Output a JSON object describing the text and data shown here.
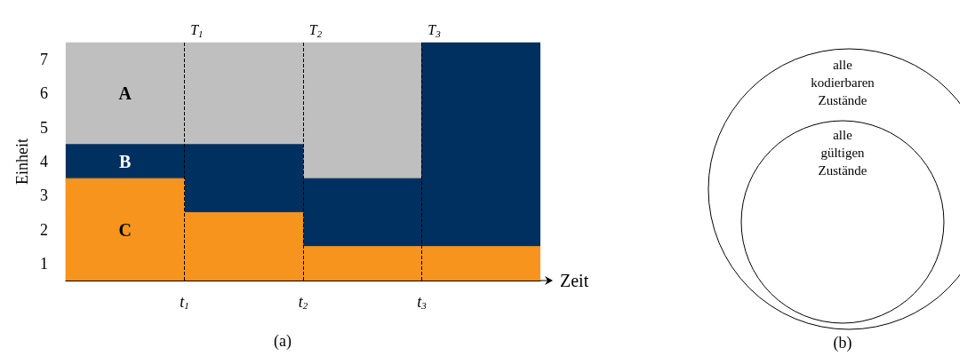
{
  "chart_data": {
    "type": "area",
    "stacked": true,
    "xlim": [
      0,
      4
    ],
    "xticks": [
      {
        "value": 1,
        "label": "t$_{1}$"
      },
      {
        "value": 2,
        "label": "t$_{2}$"
      },
      {
        "value": 3,
        "label": "t$_{3}$"
      }
    ],
    "ylim": [
      0.5,
      7.5
    ],
    "yticks": [
      1,
      2,
      3,
      4,
      5,
      6,
      7
    ],
    "xlabel": "Zeit",
    "ylabel": "Einheit",
    "series": [
      {
        "name": "C",
        "color": "#f7941d",
        "x": [
          0,
          1,
          1,
          2,
          2,
          3,
          3,
          4
        ],
        "values": [
          3.5,
          3.5,
          2.5,
          2.5,
          1.5,
          1.5,
          1.5,
          1.5
        ]
      },
      {
        "name": "B",
        "color": "#003060",
        "x": [
          0,
          1,
          1,
          2,
          2,
          3,
          3,
          4
        ],
        "values": [
          1,
          1,
          2,
          2,
          2,
          2,
          6,
          6
        ]
      },
      {
        "name": "A",
        "color": "#bfbfbf",
        "x": [
          0,
          1,
          1,
          2,
          2,
          3
        ],
        "values": [
          3,
          3,
          3,
          3,
          4,
          4
        ]
      }
    ],
    "ref_lines": [
      {
        "axis": "x",
        "value": 1,
        "label": "T$_{1}$",
        "line_style": "dashed",
        "color": "#000000"
      },
      {
        "axis": "x",
        "value": 2,
        "label": "T$_{2}$",
        "line_style": "dashed",
        "color": "#000000"
      },
      {
        "axis": "x",
        "value": 3,
        "label": "T$_{3}$",
        "line_style": "dashed",
        "color": "#000000"
      }
    ],
    "annotations": [
      "(a)",
      "alle kodierbaren Zustände",
      "alle gültigen Zustände",
      "(b)"
    ]
  }
}
